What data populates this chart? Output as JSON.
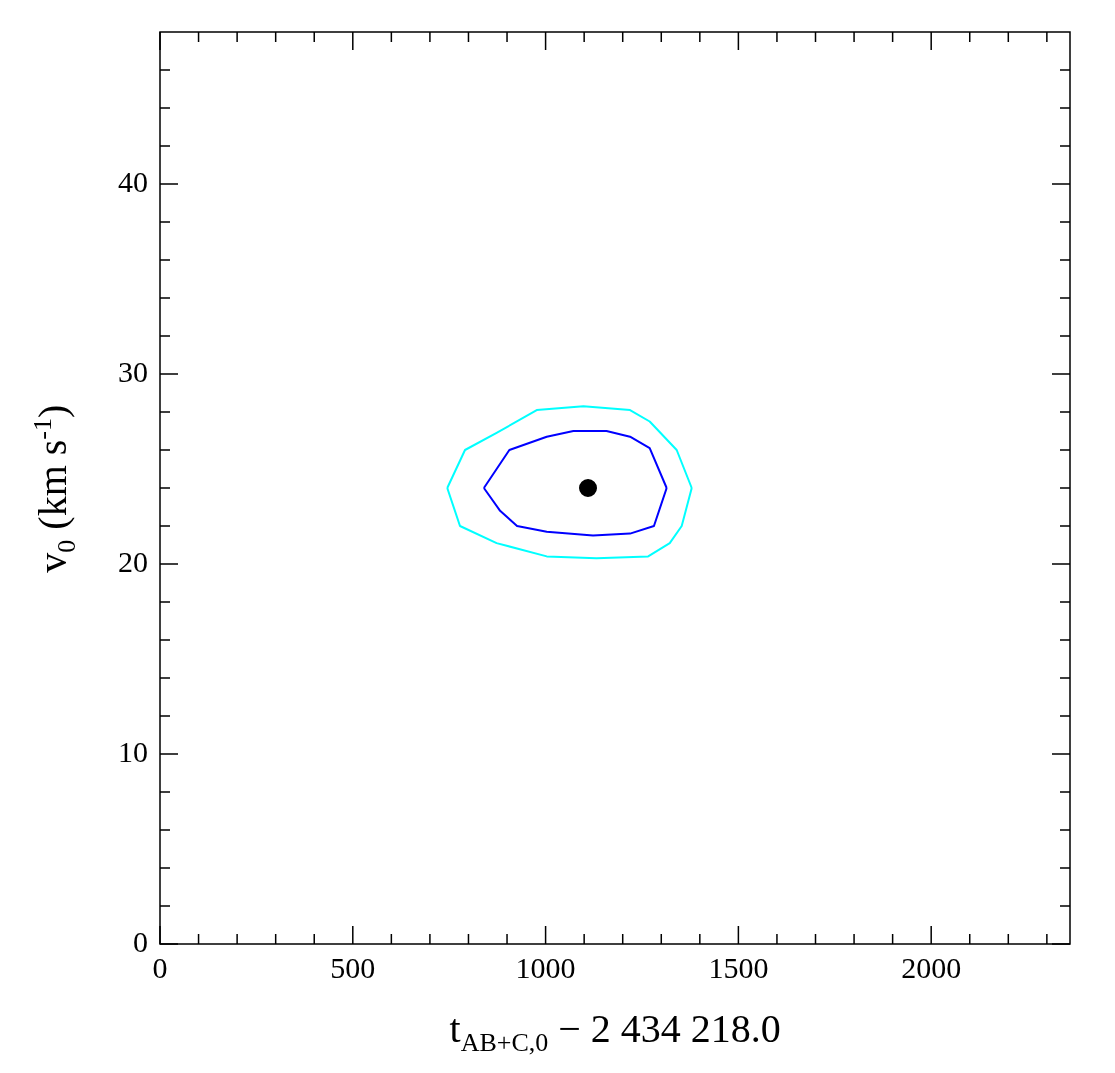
{
  "chart_data": {
    "type": "line",
    "xlabel": "t$_{AB+C,0}$ − 2 434 218.0",
    "ylabel": "v$_{0}$ (km s$^{-1}$)",
    "xlim": [
      0,
      2360
    ],
    "ylim": [
      0,
      48
    ],
    "xticks": [
      0,
      {
        "value": 100,
        "label": null
      },
      {
        "value": 200,
        "label": null
      },
      {
        "value": 300,
        "label": null
      },
      {
        "value": 400,
        "label": null
      },
      500,
      {
        "value": 600,
        "label": null
      },
      {
        "value": 700,
        "label": null
      },
      {
        "value": 800,
        "label": null
      },
      {
        "value": 900,
        "label": null
      },
      1000,
      {
        "value": 1100,
        "label": null
      },
      {
        "value": 1200,
        "label": null
      },
      {
        "value": 1300,
        "label": null
      },
      {
        "value": 1400,
        "label": null
      },
      1500,
      {
        "value": 1600,
        "label": null
      },
      {
        "value": 1700,
        "label": null
      },
      {
        "value": 1800,
        "label": null
      },
      {
        "value": 1900,
        "label": null
      },
      2000,
      {
        "value": 2100,
        "label": null
      },
      {
        "value": 2200,
        "label": null
      },
      {
        "value": 2300,
        "label": null
      }
    ],
    "yticks": [
      0,
      {
        "value": 2,
        "label": null
      },
      {
        "value": 4,
        "label": null
      },
      {
        "value": 6,
        "label": null
      },
      {
        "value": 8,
        "label": null
      },
      10,
      {
        "value": 12,
        "label": null
      },
      {
        "value": 14,
        "label": null
      },
      {
        "value": 16,
        "label": null
      },
      {
        "value": 18,
        "label": null
      },
      20,
      {
        "value": 22,
        "label": null
      },
      {
        "value": 24,
        "label": null
      },
      {
        "value": 26,
        "label": null
      },
      {
        "value": 28,
        "label": null
      },
      30,
      {
        "value": 32,
        "label": null
      },
      {
        "value": 34,
        "label": null
      },
      {
        "value": 36,
        "label": null
      },
      {
        "value": 38,
        "label": null
      },
      40,
      {
        "value": 42,
        "label": null
      },
      {
        "value": 44,
        "label": null
      },
      {
        "value": 46,
        "label": null
      }
    ],
    "grid": false,
    "legend": false,
    "marker": "none",
    "line_style": "solid",
    "series": [
      {
        "color": "#00ffff",
        "x": [
          745,
          791,
          873,
          977,
          1098,
          1219,
          1270,
          1340,
          1379
        ],
        "values": [
          24.0,
          26.0,
          26.9,
          28.1,
          28.3,
          28.1,
          27.5,
          26.0,
          24.0
        ]
      },
      {
        "color": "#00ffff",
        "x": [
          745,
          778,
          873,
          1003,
          1132,
          1266,
          1322,
          1353,
          1379
        ],
        "values": [
          24.0,
          22.0,
          21.1,
          20.4,
          20.3,
          20.4,
          21.1,
          22.0,
          24.0
        ]
      },
      {
        "color": "#0000ff",
        "x": [
          840,
          906,
          1003,
          1072,
          1158,
          1219,
          1270,
          1314
        ],
        "values": [
          24.0,
          26.0,
          26.7,
          27.0,
          27.0,
          26.7,
          26.1,
          24.0
        ]
      },
      {
        "color": "#0000ff",
        "x": [
          840,
          882,
          926,
          1003,
          1123,
          1219,
          1281,
          1314
        ],
        "values": [
          24.0,
          22.8,
          22.0,
          21.7,
          21.5,
          21.6,
          22.0,
          24.0
        ]
      },
      {
        "type": "scatter",
        "color": "#000000",
        "marker": "circle",
        "x": [
          1110
        ],
        "values": [
          24.0
        ]
      }
    ]
  }
}
